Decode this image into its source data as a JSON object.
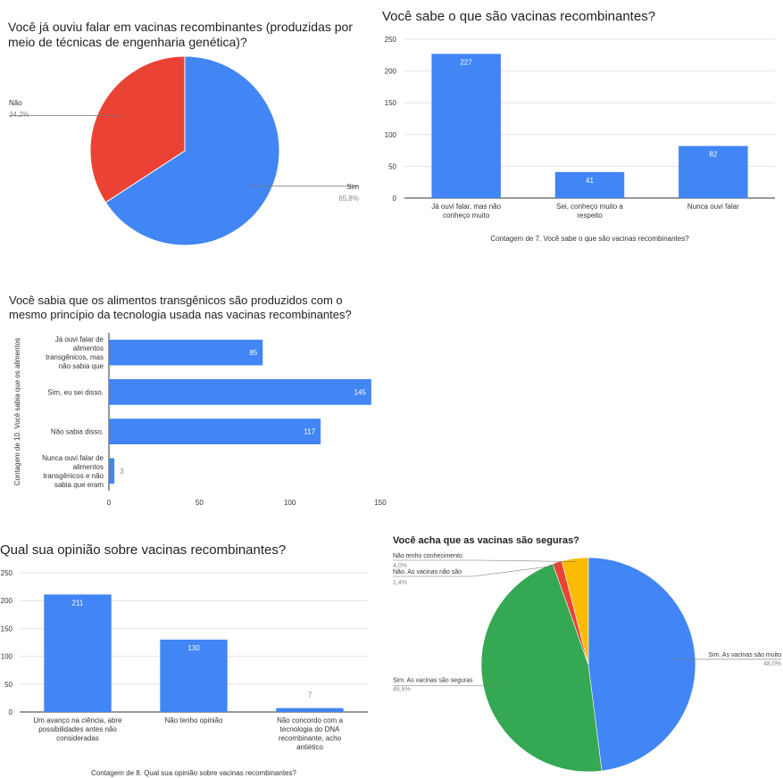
{
  "chart_data": [
    {
      "type": "pie",
      "title": "Você já ouviu falar em vacinas recombinantes (produzidas por\nmeio de técnicas de engenharia genética)?",
      "slices": [
        {
          "label": "Sim",
          "value": 65.8,
          "value_label": "65,8%",
          "color": "#4285f4"
        },
        {
          "label": "Não",
          "value": 34.2,
          "value_label": "34,2%",
          "color": "#ea4335"
        }
      ]
    },
    {
      "type": "bar",
      "title": "Você sabe o que são vacinas recombinantes?",
      "categories": [
        "Já ouvi falar, mas não\nconheço muito",
        "Sei, conheço muito a\nrespeito",
        "Nunca ouvi falar"
      ],
      "values": [
        227,
        41,
        82
      ],
      "value_labels": [
        "227",
        "41",
        "82"
      ],
      "xlabel": "Contagem de 7. Você sabe o que são vacinas recombinantes?",
      "ylabel": "",
      "ylim": [
        0,
        250
      ],
      "yticks": [
        "0",
        "50",
        "100",
        "150",
        "200",
        "250"
      ],
      "color": "#4285f4",
      "grid": true
    },
    {
      "type": "bar",
      "orientation": "horizontal",
      "title": "Você sabia que os alimentos transgênicos são produzidos com o\nmesmo princípio da tecnologia usada nas vacinas recombinantes?",
      "categories": [
        "Já ouvi falar de\nalimentos\ntransgênicos, mas\nnão sabia que",
        "Sim, eu sei disso.",
        "Não sabia disso.",
        "Nunca ouvi falar de\nalimentos\ntransgênicos e não\nsabia que eram"
      ],
      "values": [
        85,
        145,
        117,
        3
      ],
      "value_labels": [
        "85",
        "145",
        "117",
        "3"
      ],
      "xlabel": "",
      "ylabel": "Contagem de 10. Você sabia que os alimentos",
      "xlim": [
        0,
        150
      ],
      "xticks": [
        "0",
        "50",
        "100",
        "150"
      ],
      "color": "#4285f4"
    },
    {
      "type": "bar",
      "title": "Qual sua opinião sobre vacinas recombinantes?",
      "categories": [
        "Um avanço na ciência, abre\npossibilidades antes não\nconsideradas",
        "Não tenho opinião",
        "Não concordo com a\ntecnologia do DNA\nrecombinante, acho\nantiético"
      ],
      "values": [
        211,
        130,
        7
      ],
      "value_labels": [
        "211",
        "130",
        "7"
      ],
      "xlabel": "Contagem de 8. Qual sua opinião sobre vacinas recombinantes?",
      "ylabel": "",
      "ylim": [
        0,
        250
      ],
      "yticks": [
        "0",
        "50",
        "100",
        "150",
        "200",
        "250"
      ],
      "color": "#4285f4",
      "grid": true
    },
    {
      "type": "pie",
      "title": "Você acha que as vacinas são seguras?",
      "slices": [
        {
          "label": "Sim. As vacinas são muito seguras",
          "display_label": "Sim. As vacinas são muito",
          "value": 48.0,
          "value_label": "48,0%",
          "color": "#4285f4"
        },
        {
          "label": "Sim. As vacinas são seguras",
          "display_label": "Sim. As vacinas são seguras",
          "value": 46.6,
          "value_label": "46,6%",
          "color": "#34a853"
        },
        {
          "label": "Não. As vacinas não são",
          "display_label": "Não. As vacinas não são",
          "value": 1.4,
          "value_label": "1,4%",
          "color": "#ea4335"
        },
        {
          "label": "Não tenho conhecimento",
          "display_label": "Não tenho conhecimento",
          "value": 4.0,
          "value_label": "4,0%",
          "color": "#fbbc04"
        }
      ]
    }
  ]
}
